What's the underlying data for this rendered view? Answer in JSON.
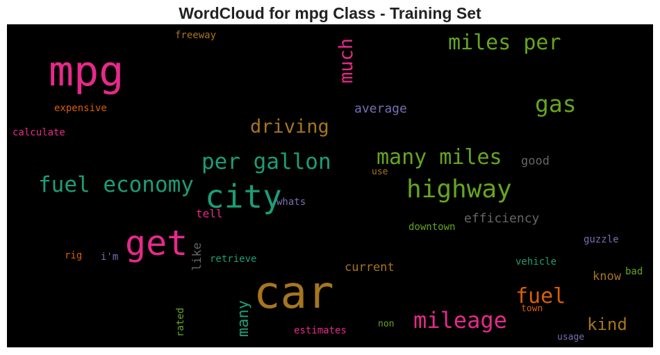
{
  "title": "WordCloud for mpg Class - Training Set",
  "colors": {
    "pink": "#e7298a",
    "green": "#66a61e",
    "teal": "#1b9e77",
    "gold": "#a6761d",
    "orange": "#d95f02",
    "purple": "#7570b3",
    "gray": "#666666"
  },
  "words": [
    {
      "text": "mpg",
      "color": "pink"
    },
    {
      "text": "car",
      "color": "gold"
    },
    {
      "text": "get",
      "color": "pink"
    },
    {
      "text": "city",
      "color": "teal"
    },
    {
      "text": "highway",
      "color": "green"
    },
    {
      "text": "mileage",
      "color": "pink"
    },
    {
      "text": "fuel economy",
      "color": "teal"
    },
    {
      "text": "per gallon",
      "color": "teal"
    },
    {
      "text": "miles per",
      "color": "green"
    },
    {
      "text": "many miles",
      "color": "green"
    },
    {
      "text": "gas",
      "color": "green"
    },
    {
      "text": "driving",
      "color": "gold"
    },
    {
      "text": "fuel",
      "color": "orange"
    },
    {
      "text": "much",
      "color": "pink"
    },
    {
      "text": "kind",
      "color": "gold"
    },
    {
      "text": "many",
      "color": "teal"
    },
    {
      "text": "average",
      "color": "purple"
    },
    {
      "text": "efficiency",
      "color": "gray"
    },
    {
      "text": "good",
      "color": "gray"
    },
    {
      "text": "current",
      "color": "gold"
    },
    {
      "text": "know",
      "color": "gold"
    },
    {
      "text": "like",
      "color": "gray"
    },
    {
      "text": "tell",
      "color": "pink"
    },
    {
      "text": "freeway",
      "color": "gold"
    },
    {
      "text": "expensive",
      "color": "orange"
    },
    {
      "text": "calculate",
      "color": "pink"
    },
    {
      "text": "use",
      "color": "gold"
    },
    {
      "text": "whats",
      "color": "purple"
    },
    {
      "text": "downtown",
      "color": "green"
    },
    {
      "text": "guzzle",
      "color": "purple"
    },
    {
      "text": "retrieve",
      "color": "teal"
    },
    {
      "text": "i'm",
      "color": "purple"
    },
    {
      "text": "rig",
      "color": "orange"
    },
    {
      "text": "vehicle",
      "color": "teal"
    },
    {
      "text": "bad",
      "color": "green"
    },
    {
      "text": "town",
      "color": "orange"
    },
    {
      "text": "rated",
      "color": "green"
    },
    {
      "text": "estimates",
      "color": "pink"
    },
    {
      "text": "non",
      "color": "green"
    },
    {
      "text": "usage",
      "color": "purple"
    }
  ]
}
